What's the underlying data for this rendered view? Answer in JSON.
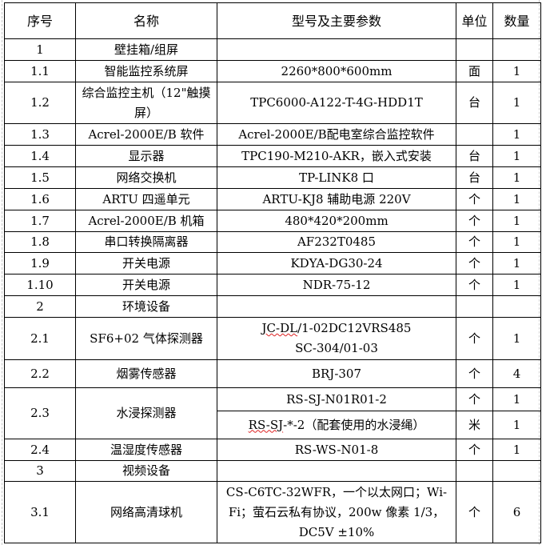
{
  "headers": [
    "序号",
    "名称",
    "型号及主要参数",
    "单位",
    "数量"
  ],
  "rows": [
    {
      "no": "1",
      "name": "壁挂箱/组屏",
      "model": "",
      "unit": "",
      "qty": ""
    },
    {
      "no": "1.1",
      "name": "智能监控系统屏",
      "model": "2260*800*600mm",
      "unit": "面",
      "qty": "1"
    },
    {
      "no": "1.2",
      "name": "综合监控主机（12\"触摸屏）",
      "model": "TPC6000-A122-T-4G-HDD1T",
      "unit": "台",
      "qty": "1"
    },
    {
      "no": "1.3",
      "name": "Acrel-2000E/B 软件",
      "model": "Acrel-2000E/B配电室综合监控软件",
      "unit": "",
      "qty": "1"
    },
    {
      "no": "1.4",
      "name": "显示器",
      "model": "TPC190-M210-AKR，嵌入式安装",
      "unit": "台",
      "qty": "1"
    },
    {
      "no": "1.5",
      "name": "网络交换机",
      "model": "TP-LINK8 口",
      "unit": "台",
      "qty": "1"
    },
    {
      "no": "1.6",
      "name": "ARTU 四遥单元",
      "model": "ARTU-KJ8 辅助电源 220V",
      "unit": "个",
      "qty": "1"
    },
    {
      "no": "1.7",
      "name": "Acrel-2000E/B 机箱",
      "model": "480*420*200mm",
      "unit": "个",
      "qty": "1"
    },
    {
      "no": "1.8",
      "name": "串口转换隔离器",
      "model": "AF232T0485",
      "unit": "个",
      "qty": "1"
    },
    {
      "no": "1.9",
      "name": "开关电源",
      "model": "KDYA-DG30-24",
      "unit": "个",
      "qty": "1"
    },
    {
      "no": "1.10",
      "name": "开关电源",
      "model": "NDR-75-12",
      "unit": "个",
      "qty": "1"
    },
    {
      "no": "2",
      "name": "环境设备",
      "model": "",
      "unit": "",
      "qty": ""
    },
    {
      "no": "2.1",
      "name": "SF6+02 气体探测器",
      "model_line1": "JC-DL/1-02DC12VRS485",
      "model_line2": "SC-304/01-03",
      "unit": "个",
      "qty": "1"
    },
    {
      "no": "2.2",
      "name": "烟雾传感器",
      "model": "BRJ-307",
      "unit": "个",
      "qty": "4"
    },
    {
      "no": "2.3",
      "name": "水浸探测器",
      "sub": [
        {
          "model": "RS-SJ-N01R01-2",
          "unit": "个",
          "qty": "1"
        },
        {
          "model": "RS-SJ-*-2（配套使用的水浸绳）",
          "unit": "米",
          "qty": "1"
        }
      ]
    },
    {
      "no": "2.4",
      "name": "温湿度传感器",
      "model": "RS-WS-N01-8",
      "unit": "个",
      "qty": "1"
    },
    {
      "no": "3",
      "name": "视频设备",
      "model": "",
      "unit": "",
      "qty": ""
    },
    {
      "no": "3.1",
      "name": "网络高清球机",
      "model": "CS-C6TC-32WFR，一个以太网口；Wi-Fi；萤石云私有协议，200w 像素 1/3，DC5V ±10%",
      "unit": "个",
      "qty": "6"
    }
  ]
}
